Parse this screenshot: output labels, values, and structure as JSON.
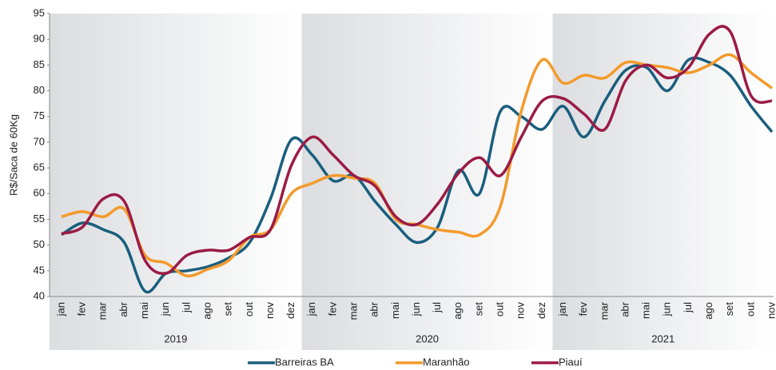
{
  "chart_data": {
    "type": "line",
    "y_label": "R$/Saca de 60Kg",
    "categories": [
      "jan",
      "fev",
      "mar",
      "abr",
      "mai",
      "jun",
      "jul",
      "ago",
      "set",
      "out",
      "nov",
      "dez",
      "jan",
      "fev",
      "mar",
      "abr",
      "mai",
      "jun",
      "jul",
      "ago",
      "set",
      "out",
      "nov",
      "dez",
      "jan",
      "fev",
      "mar",
      "abr",
      "mai",
      "jun",
      "jul",
      "ago",
      "set",
      "out",
      "nov"
    ],
    "years": [
      "2019",
      "2020",
      "2021"
    ],
    "ylim": [
      40,
      95
    ],
    "yticks": [
      40,
      45,
      50,
      55,
      60,
      65,
      70,
      75,
      80,
      85,
      90,
      95
    ],
    "grid": false,
    "legend": "bottom",
    "series": [
      {
        "name": "Barreiras BA",
        "color": "#1a5e7e",
        "values": [
          52,
          54.3,
          53,
          50.5,
          41,
          44.5,
          45,
          45.8,
          47.5,
          50.5,
          59,
          70.5,
          67.5,
          62.5,
          63.5,
          58.5,
          54,
          50.5,
          53.5,
          64.5,
          60,
          76,
          75,
          72.5,
          77,
          71,
          78,
          84,
          84.5,
          80,
          86,
          85.5,
          83,
          77,
          72
        ]
      },
      {
        "name": "Maranhão",
        "color": "#f39a2b",
        "values": [
          55.5,
          56.5,
          55.5,
          57,
          48,
          46.5,
          44,
          45.3,
          47,
          51.5,
          53,
          60,
          62,
          63.5,
          63,
          62,
          55,
          54,
          53,
          52.5,
          52,
          57.5,
          76,
          86,
          81.5,
          83,
          82.5,
          85.5,
          85,
          84.5,
          83.5,
          85,
          87,
          83.5,
          80.5
        ]
      },
      {
        "name": "Piauí",
        "color": "#9b1b45",
        "values": [
          52.2,
          53.5,
          59,
          58.5,
          47,
          44.5,
          48,
          49,
          49,
          51.5,
          53,
          65.5,
          71,
          67.5,
          63.5,
          61.5,
          55.5,
          54,
          58,
          64,
          67,
          63.5,
          71,
          78,
          78.5,
          75.5,
          72.5,
          82,
          85,
          82.5,
          84.5,
          91,
          91.5,
          79,
          78
        ]
      }
    ]
  }
}
